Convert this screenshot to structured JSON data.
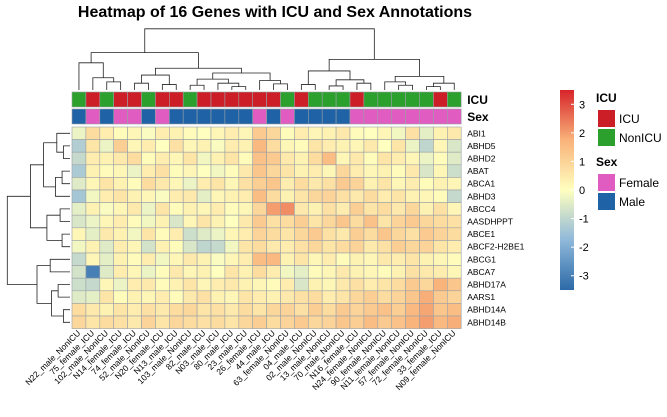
{
  "chart_data": {
    "type": "heatmap",
    "title": "Heatmap of 16 Genes with ICU and Sex Annotations",
    "columns": [
      "N22_male_NonICU",
      "75_female_ICU",
      "102_male_NonICU",
      "N14_female_ICU",
      "74_female_ICU",
      "52_male_NonICU",
      "N20_female_ICU",
      "N13_male_ICU",
      "103_male_NonICU",
      "82_male_ICU",
      "N03_male_ICU",
      "80_male_ICU",
      "23_male_ICU",
      "26_female_ICU",
      "44_male_ICU",
      "63_female_NonICU",
      "04_male_ICU",
      "02_male_NonICU",
      "13_male_NonICU",
      "70_male_NonICU",
      "N16_female_ICU",
      "N24_female_NonICU",
      "90_female_NonICU",
      "N11_female_NonICU",
      "57_female_NonICU",
      "72_female_NonICU",
      "33_female_ICU",
      "N09_female_NonICU"
    ],
    "rows": [
      "ABI1",
      "ABHD5",
      "ABHD2",
      "ABAT",
      "ABCA1",
      "ABHD3",
      "ABCC4",
      "AASDHPPT",
      "ABCE1",
      "ABCF2-H2BE1",
      "ABCG1",
      "ABCA7",
      "ABHD17A",
      "AARS1",
      "ABHD14A",
      "ABHD14B"
    ],
    "annotations": {
      "ICU": [
        "NonICU",
        "ICU",
        "NonICU",
        "ICU",
        "ICU",
        "NonICU",
        "ICU",
        "ICU",
        "NonICU",
        "ICU",
        "ICU",
        "ICU",
        "ICU",
        "ICU",
        "ICU",
        "NonICU",
        "ICU",
        "NonICU",
        "NonICU",
        "NonICU",
        "ICU",
        "NonICU",
        "NonICU",
        "NonICU",
        "NonICU",
        "NonICU",
        "ICU",
        "NonICU"
      ],
      "Sex": [
        "Male",
        "Female",
        "Male",
        "Female",
        "Female",
        "Male",
        "Female",
        "Male",
        "Male",
        "Male",
        "Male",
        "Male",
        "Male",
        "Female",
        "Male",
        "Female",
        "Male",
        "Male",
        "Male",
        "Male",
        "Female",
        "Female",
        "Female",
        "Female",
        "Female",
        "Female",
        "Female",
        "Female"
      ]
    },
    "values": [
      [
        -0.3,
        0.8,
        0.4,
        0.1,
        0.2,
        -0.1,
        0.4,
        0.3,
        0.1,
        0.0,
        0.2,
        0.4,
        0.2,
        1.2,
        0.9,
        0.1,
        0.4,
        0.2,
        0.3,
        0.5,
        0.1,
        0.0,
        0.2,
        -0.2,
        0.7,
        -0.4,
        0.3,
        0.5
      ],
      [
        -1.2,
        0.6,
        -0.3,
        1.1,
        0.2,
        0.4,
        0.0,
        0.7,
        0.2,
        0.3,
        -0.1,
        0.4,
        0.3,
        1.6,
        0.8,
        0.2,
        0.1,
        0.6,
        0.4,
        0.3,
        0.2,
        0.5,
        0.0,
        0.6,
        -0.3,
        -1.0,
        0.2,
        -0.6
      ],
      [
        -0.9,
        0.4,
        0.3,
        0.5,
        0.8,
        0.1,
        0.4,
        0.2,
        0.6,
        -0.2,
        0.3,
        0.6,
        0.1,
        1.4,
        1.2,
        0.5,
        0.3,
        0.8,
        1.5,
        0.2,
        0.5,
        0.1,
        0.6,
        0.4,
        0.2,
        -0.3,
        0.1,
        -0.5
      ],
      [
        -1.3,
        0.3,
        0.1,
        0.2,
        -0.3,
        0.4,
        0.7,
        0.1,
        0.2,
        0.0,
        -0.2,
        0.1,
        0.5,
        1.3,
        0.9,
        0.6,
        0.3,
        0.4,
        0.2,
        0.9,
        0.4,
        0.2,
        0.3,
        0.1,
        0.5,
        -0.6,
        0.2,
        -0.8
      ],
      [
        -0.5,
        0.2,
        0.6,
        0.3,
        0.1,
        0.8,
        0.5,
        0.2,
        -0.3,
        0.4,
        0.6,
        0.2,
        0.7,
        1.1,
        1.3,
        0.4,
        0.8,
        0.5,
        0.7,
        1.2,
        1.0,
        0.3,
        0.6,
        0.2,
        0.4,
        0.1,
        0.3,
        0.2
      ],
      [
        -1.4,
        -0.2,
        0.4,
        0.6,
        0.3,
        0.2,
        -0.1,
        0.4,
        0.5,
        -0.4,
        0.2,
        0.3,
        0.4,
        1.5,
        0.8,
        0.3,
        0.6,
        0.9,
        1.0,
        0.7,
        0.5,
        0.8,
        0.4,
        0.6,
        0.3,
        0.2,
        0.1,
        -0.9
      ],
      [
        -0.4,
        0.3,
        -0.1,
        0.2,
        0.5,
        -0.3,
        0.6,
        0.1,
        0.3,
        0.2,
        0.4,
        0.1,
        0.2,
        0.9,
        2.0,
        2.2,
        0.5,
        0.3,
        0.7,
        0.4,
        1.1,
        0.6,
        0.8,
        0.5,
        0.9,
        0.3,
        0.7,
        0.2
      ],
      [
        -0.6,
        -0.3,
        0.2,
        0.4,
        0.1,
        -0.2,
        0.3,
        -0.6,
        0.2,
        0.6,
        0.3,
        0.0,
        0.5,
        1.2,
        0.7,
        0.8,
        1.1,
        0.6,
        0.9,
        1.3,
        0.8,
        1.4,
        0.6,
        1.0,
        1.2,
        0.9,
        0.8,
        0.7
      ],
      [
        0.2,
        -0.4,
        0.5,
        0.3,
        -0.2,
        0.6,
        0.1,
        0.4,
        -0.8,
        -0.5,
        -0.3,
        0.2,
        0.4,
        1.0,
        0.8,
        0.6,
        0.9,
        1.2,
        0.7,
        0.5,
        1.1,
        0.8,
        1.3,
        0.9,
        0.7,
        1.2,
        1.0,
        0.8
      ],
      [
        -0.2,
        0.3,
        -0.5,
        0.4,
        0.2,
        -0.7,
        0.3,
        0.1,
        -0.6,
        -1.0,
        -0.9,
        -0.2,
        0.6,
        0.8,
        0.5,
        0.4,
        0.7,
        0.9,
        0.6,
        0.8,
        1.0,
        0.5,
        0.7,
        1.1,
        0.9,
        1.0,
        0.6,
        0.4
      ],
      [
        -0.9,
        0.2,
        -0.4,
        0.3,
        0.1,
        0.4,
        -0.2,
        0.2,
        0.5,
        0.3,
        -0.1,
        0.2,
        0.4,
        1.5,
        1.6,
        0.3,
        0.6,
        0.2,
        0.4,
        0.1,
        0.3,
        0.2,
        0.5,
        0.4,
        0.6,
        0.3,
        0.2,
        0.1
      ],
      [
        -0.7,
        -3.0,
        -0.5,
        0.4,
        0.2,
        -0.3,
        0.1,
        0.5,
        0.2,
        0.3,
        0.0,
        0.6,
        0.3,
        0.8,
        0.4,
        -0.2,
        -0.4,
        0.1,
        0.2,
        0.5,
        0.3,
        0.2,
        0.1,
        0.3,
        0.7,
        0.5,
        0.4,
        0.2
      ],
      [
        -0.8,
        -0.9,
        0.2,
        -0.3,
        0.4,
        0.5,
        0.1,
        0.3,
        0.6,
        0.2,
        0.4,
        0.5,
        0.3,
        0.2,
        0.1,
        0.4,
        -0.6,
        0.3,
        0.2,
        0.5,
        0.7,
        0.4,
        0.6,
        0.8,
        1.2,
        0.9,
        1.7,
        1.3
      ],
      [
        -0.5,
        -0.4,
        0.6,
        0.1,
        0.3,
        0.2,
        0.4,
        0.1,
        0.5,
        0.7,
        0.3,
        0.2,
        0.6,
        0.4,
        0.3,
        0.5,
        0.7,
        0.8,
        0.4,
        0.6,
        0.9,
        1.1,
        0.8,
        1.0,
        1.3,
        1.8,
        1.2,
        1.0
      ],
      [
        0.8,
        0.5,
        0.3,
        0.6,
        0.4,
        0.7,
        0.5,
        0.8,
        0.9,
        0.6,
        0.7,
        0.5,
        0.8,
        0.6,
        0.9,
        1.0,
        0.7,
        1.1,
        0.8,
        1.2,
        1.0,
        1.2,
        1.4,
        1.1,
        1.6,
        1.9,
        1.3,
        1.5
      ],
      [
        0.9,
        0.6,
        0.8,
        0.7,
        0.5,
        1.0,
        0.6,
        0.9,
        0.8,
        0.7,
        0.8,
        0.6,
        0.9,
        1.1,
        0.8,
        1.0,
        1.2,
        0.9,
        1.0,
        1.3,
        1.1,
        1.5,
        1.2,
        1.4,
        1.7,
        2.0,
        1.6,
        1.8
      ]
    ],
    "color_scale": {
      "low": "#2c6aa8",
      "mid": "#ffffbf",
      "high": "#d7242a",
      "range": [
        -3.5,
        3.5
      ],
      "ticks": [
        3,
        2,
        1,
        0,
        -1,
        -2,
        -3
      ]
    },
    "legend": [
      {
        "title": "ICU",
        "items": [
          {
            "label": "ICU",
            "color": "#cc1e27"
          },
          {
            "label": "NonICU",
            "color": "#2ca02c"
          }
        ]
      },
      {
        "title": "Sex",
        "items": [
          {
            "label": "Female",
            "color": "#e05cc1"
          },
          {
            "label": "Male",
            "color": "#1f62a6"
          }
        ]
      }
    ],
    "annotation_labels": [
      "ICU",
      "Sex"
    ],
    "legend_position": "right"
  }
}
